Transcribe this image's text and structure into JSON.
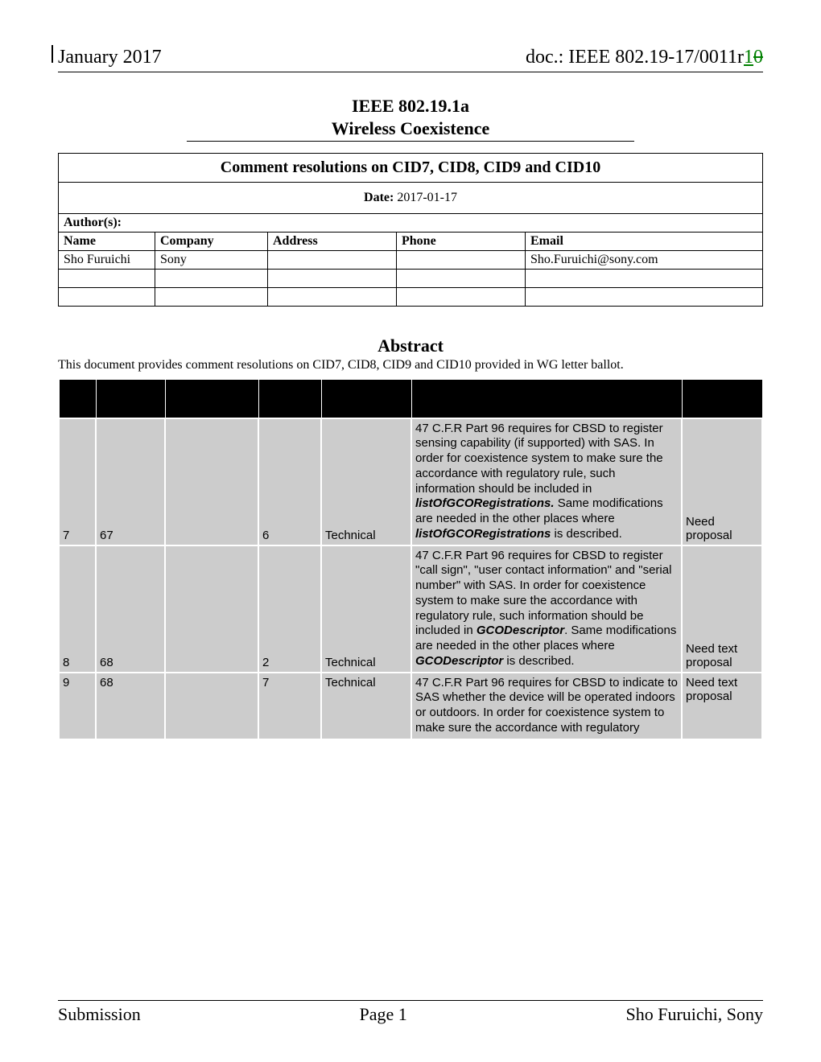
{
  "header": {
    "date": "January 2017",
    "doc_prefix": "doc.: IEEE 802.19-17/0011r",
    "rev_new": "1",
    "rev_old": "0"
  },
  "title": {
    "line1": "IEEE 802.19.1a",
    "line2": "Wireless Coexistence"
  },
  "meta": {
    "doc_title": "Comment resolutions on CID7, CID8, CID9 and CID10",
    "date_label": "Date:",
    "date_value": "  2017-01-17",
    "authors_label": "Author(s):",
    "columns": {
      "name": "Name",
      "company": "Company",
      "address": "Address",
      "phone": "Phone",
      "email": "Email"
    },
    "author": {
      "name": "Sho Furuichi",
      "company": "Sony",
      "address": "",
      "phone": "",
      "email": "Sho.Furuichi@sony.com"
    }
  },
  "abstract": {
    "heading": "Abstract",
    "text": "This document provides comment resolutions on CID7, CID8, CID9 and CID10 provided in WG letter ballot."
  },
  "comments": {
    "rows": [
      {
        "cid": "7",
        "page": "67",
        "sub": "",
        "line": "6",
        "category": "Technical",
        "comment_html": "47 C.F.R Part 96 requires for CBSD to register sensing capability (if supported) with SAS. In order for coexistence system to make sure the accordance with regulatory rule, such information should be included in <span class=\"bi\">listOfGCORegistrations.</span> Same modifications are needed in the other places where <span class=\"bi\">listOfGCORegistrations</span> is described.",
        "resolution": "Need proposal",
        "valign": "bottom"
      },
      {
        "cid": "8",
        "page": "68",
        "sub": "",
        "line": "2",
        "category": "Technical",
        "comment_html": "47 C.F.R Part 96 requires for CBSD to register \"call sign\", \"user contact information\" and \"serial number\" with SAS. In order for coexistence system to make sure the accordance with regulatory rule, such information should be included in <span class=\"bi\">GCODescriptor</span>. Same modifications are needed in the other places where <span class=\"bi\">GCODescriptor</span> is described.",
        "resolution": "Need text proposal",
        "valign": "bottom"
      },
      {
        "cid": "9",
        "page": "68",
        "sub": "",
        "line": "7",
        "category": "Technical",
        "comment_html": "47 C.F.R Part 96 requires for CBSD to indicate to SAS whether the device will be operated indoors or outdoors. In order for coexistence system to make sure the accordance with regulatory",
        "resolution": "Need text proposal",
        "valign": "top"
      }
    ]
  },
  "footer": {
    "left": "Submission",
    "center": "Page 1",
    "right": "Sho Furuichi, Sony"
  }
}
